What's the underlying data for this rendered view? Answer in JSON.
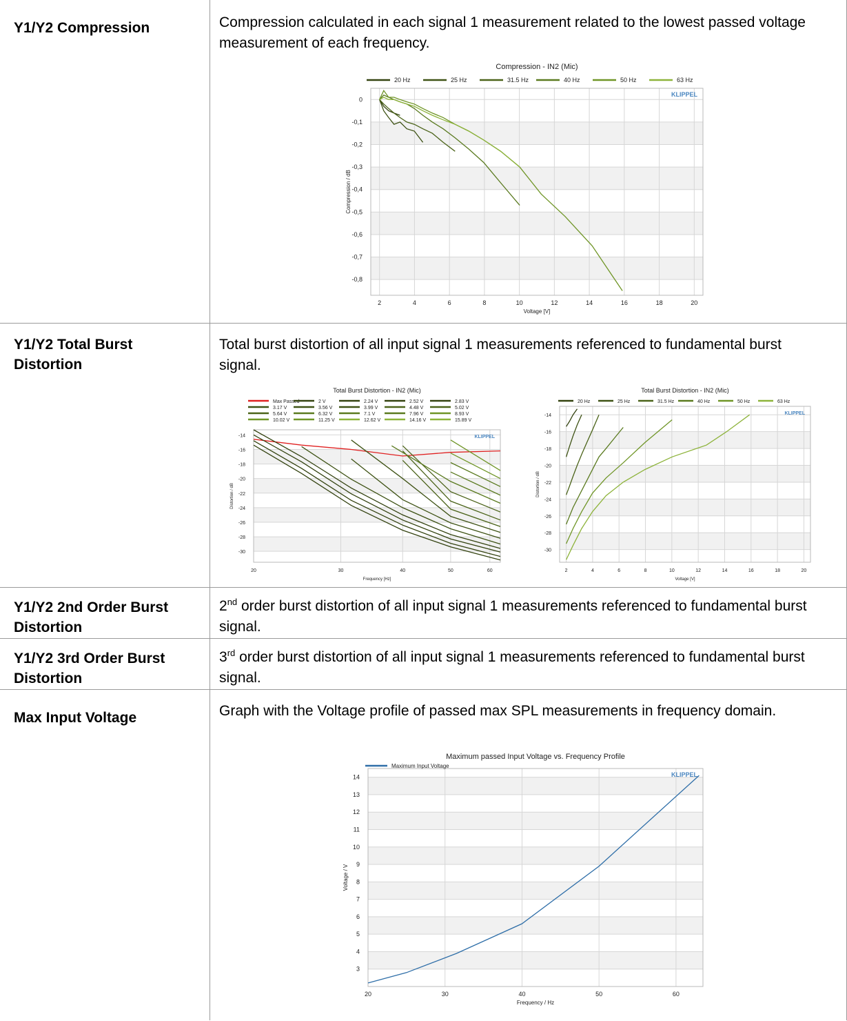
{
  "rows": [
    {
      "name": "Y1/Y2 Compression",
      "desc": "Compression calculated in each signal 1 measurement related to the lowest passed voltage measurement of each frequency."
    },
    {
      "name": "Y1/Y2 Total Burst Distortion",
      "desc": "Total burst distortion of all input signal 1 measurements referenced to fundamental burst signal."
    },
    {
      "name": "Y1/Y2 2nd Order Burst Distortion",
      "desc_sup": "nd",
      "desc_num": "2",
      "desc": " order burst distortion of all input signal 1 measurements referenced to fundamental burst signal."
    },
    {
      "name": "Y1/Y2 3rd Order Burst Distortion",
      "desc_sup": "rd",
      "desc_num": "3",
      "desc": " order burst distortion of all input signal 1 measurements referenced to fundamental burst signal."
    },
    {
      "name": "Max Input Voltage",
      "desc": "Graph with the Voltage profile of passed max SPL measurements in frequency domain."
    }
  ],
  "watermark": "KLIPPEL",
  "colors": {
    "series_green": [
      "#33420f",
      "#3e5214",
      "#4b6319",
      "#5a7a1f",
      "#6f9526",
      "#8db33a"
    ],
    "max_passed": "#e02020",
    "voltage_line": "#2e6ea8",
    "watermark": "#4a86c0"
  },
  "chart_data": [
    {
      "type": "line",
      "title": "Compression - IN2 (Mic)",
      "xlabel": "Voltage [V]",
      "ylabel": "Compression / dB",
      "xlim": [
        1.5,
        20.5
      ],
      "ylim": [
        -0.87,
        0.05
      ],
      "xticks": [
        "2",
        "4",
        "6",
        "8",
        "10",
        "12",
        "14",
        "16",
        "18",
        "20"
      ],
      "yticks": [
        "0",
        "-0,1",
        "-0,2",
        "-0,3",
        "-0,4",
        "-0,5",
        "-0,6",
        "-0,7",
        "-0,8"
      ],
      "ytick_values": [
        0,
        -0.1,
        -0.2,
        -0.3,
        -0.4,
        -0.5,
        -0.6,
        -0.7,
        -0.8
      ],
      "xtick_values": [
        2,
        4,
        6,
        8,
        10,
        12,
        14,
        16,
        18,
        20
      ],
      "legend": "top",
      "series": [
        {
          "name": "20 Hz",
          "x": [
            2,
            2.24,
            2.52,
            2.83,
            3.17
          ],
          "y": [
            0,
            -0.03,
            -0.05,
            -0.06,
            -0.07
          ]
        },
        {
          "name": "25 Hz",
          "x": [
            2,
            2.24,
            2.52,
            2.83,
            3.17,
            3.56,
            3.99,
            4.48
          ],
          "y": [
            0,
            -0.05,
            -0.08,
            -0.11,
            -0.1,
            -0.13,
            -0.14,
            -0.19
          ]
        },
        {
          "name": "31.5 Hz",
          "x": [
            2,
            2.24,
            2.52,
            2.83,
            3.17,
            3.56,
            3.99,
            4.48,
            5.02,
            5.64,
            6.32
          ],
          "y": [
            0,
            -0.02,
            -0.04,
            -0.06,
            -0.08,
            -0.1,
            -0.11,
            -0.13,
            -0.15,
            -0.19,
            -0.23
          ]
        },
        {
          "name": "40 Hz",
          "x": [
            2,
            2.24,
            2.52,
            2.83,
            3.17,
            3.56,
            3.99,
            4.48,
            5.02,
            5.64,
            6.32,
            7.1,
            7.96,
            8.93,
            10.02
          ],
          "y": [
            0,
            0.02,
            0.01,
            0,
            -0.01,
            -0.02,
            -0.04,
            -0.07,
            -0.1,
            -0.13,
            -0.17,
            -0.22,
            -0.28,
            -0.37,
            -0.47
          ]
        },
        {
          "name": "50 Hz",
          "x": [
            2,
            2.24,
            2.52,
            2.83,
            3.17,
            3.56,
            3.99,
            4.48,
            5.02,
            5.64,
            6.32,
            7.1,
            7.96,
            8.93,
            10.02,
            11.25,
            12.62,
            14.16,
            15.89
          ],
          "y": [
            0,
            0.04,
            0.01,
            0.01,
            0.0,
            -0.01,
            -0.02,
            -0.04,
            -0.06,
            -0.08,
            -0.11,
            -0.14,
            -0.18,
            -0.23,
            -0.3,
            -0.42,
            -0.52,
            -0.65,
            -0.85
          ]
        },
        {
          "name": "63 Hz",
          "x": [
            2,
            2.24,
            2.52,
            2.83,
            3.17,
            3.56,
            3.99,
            4.48,
            5.02,
            5.64,
            6.32,
            7.1,
            7.96,
            8.93,
            10.02
          ],
          "y": [
            0,
            0.01,
            0.0,
            0.0,
            -0.01,
            -0.02,
            -0.03,
            -0.05,
            -0.07,
            -0.09,
            -0.11,
            -0.14,
            -0.18,
            -0.23,
            -0.3
          ]
        }
      ]
    },
    {
      "type": "line",
      "title": "Total Burst Distortion - IN2 (Mic)",
      "xlabel": "Frequency [Hz]",
      "ylabel": "Distortion / dB",
      "xscale": "log",
      "xlim": [
        20,
        63
      ],
      "ylim": [
        -31.5,
        -13.3
      ],
      "xticks": [
        "20",
        "30",
        "40",
        "50",
        "60"
      ],
      "xtick_values": [
        20,
        30,
        40,
        50,
        60
      ],
      "yticks": [
        "-14",
        "-16",
        "-18",
        "-20",
        "-22",
        "-24",
        "-26",
        "-28",
        "-30"
      ],
      "ytick_values": [
        -14,
        -16,
        -18,
        -20,
        -22,
        -24,
        -26,
        -28,
        -30
      ],
      "legend": "top",
      "series": [
        {
          "name": "Max Passed",
          "x": [
            20,
            25,
            31.5,
            40,
            50,
            63
          ],
          "y": [
            -14.6,
            -15.4,
            -16.0,
            -16.9,
            -16.4,
            -16.2
          ]
        },
        {
          "name": "2 V",
          "x": [
            20,
            25,
            31.5,
            40,
            50,
            63
          ],
          "y": [
            -15.4,
            -19.3,
            -23.7,
            -27.1,
            -29.4,
            -31.2
          ]
        },
        {
          "name": "2.24 V",
          "x": [
            20,
            25,
            31.5,
            40,
            50,
            63
          ],
          "y": [
            -14.8,
            -18.6,
            -23.0,
            -26.4,
            -28.9,
            -30.7
          ]
        },
        {
          "name": "2.52 V",
          "x": [
            20,
            25,
            31.5,
            40,
            50,
            63
          ],
          "y": [
            -14.0,
            -17.7,
            -22.1,
            -25.7,
            -28.3,
            -30.1
          ]
        },
        {
          "name": "2.83 V",
          "x": [
            20,
            25,
            31.5,
            40,
            50,
            63
          ],
          "y": [
            -13.3,
            -17.0,
            -21.3,
            -25.0,
            -27.7,
            -29.6
          ]
        },
        {
          "name": "3.17 V",
          "x": [
            25,
            31.5,
            40,
            50,
            63
          ],
          "y": [
            -15.6,
            -20.1,
            -24.0,
            -26.9,
            -29.0
          ]
        },
        {
          "name": "3.56 V",
          "x": [
            31.5,
            40,
            50,
            63
          ],
          "y": [
            -17.3,
            -22.9,
            -26.1,
            -28.2
          ]
        },
        {
          "name": "3.99 V",
          "x": [
            31.5,
            40,
            50,
            63
          ],
          "y": [
            -14.7,
            -20.0,
            -25.2,
            -27.4
          ]
        },
        {
          "name": "4.48 V",
          "x": [
            40,
            50,
            63
          ],
          "y": [
            -17.5,
            -24.2,
            -26.6
          ]
        },
        {
          "name": "5.02 V",
          "x": [
            40,
            50,
            63
          ],
          "y": [
            -16.2,
            -23.1,
            -25.7
          ]
        },
        {
          "name": "5.64 V",
          "x": [
            40,
            50,
            63
          ],
          "y": [
            -15.5,
            -21.8,
            -24.6
          ]
        },
        {
          "name": "6.32 V",
          "x": [
            38,
            50,
            63
          ],
          "y": [
            -15.5,
            -20.4,
            -23.4
          ]
        },
        {
          "name": "7.1 V",
          "x": [
            50,
            63
          ],
          "y": [
            -19.1,
            -22.3
          ]
        },
        {
          "name": "7.96 V",
          "x": [
            50,
            63
          ],
          "y": [
            -17.8,
            -21.1
          ]
        },
        {
          "name": "8.93 V",
          "x": [
            50,
            63
          ],
          "y": [
            -16.5,
            -20.0
          ]
        },
        {
          "name": "10.02 V",
          "x": [
            50,
            63
          ],
          "y": [
            -14.7,
            -18.9
          ]
        },
        {
          "name": "11.25 V",
          "x": [],
          "y": []
        },
        {
          "name": "12.62 V",
          "x": [],
          "y": []
        },
        {
          "name": "14.16 V",
          "x": [],
          "y": []
        },
        {
          "name": "15.89 V",
          "x": [],
          "y": []
        }
      ]
    },
    {
      "type": "line",
      "title": "Total Burst Distortion - IN2 (Mic)",
      "xlabel": "Voltage [V]",
      "ylabel": "Distortion / dB",
      "xlim": [
        1.5,
        20.5
      ],
      "ylim": [
        -31.5,
        -13.0
      ],
      "xticks": [
        "2",
        "4",
        "6",
        "8",
        "10",
        "12",
        "14",
        "16",
        "18",
        "20"
      ],
      "xtick_values": [
        2,
        4,
        6,
        8,
        10,
        12,
        14,
        16,
        18,
        20
      ],
      "yticks": [
        "-14",
        "-16",
        "-18",
        "-20",
        "-22",
        "-24",
        "-26",
        "-28",
        "-30"
      ],
      "ytick_values": [
        -14,
        -16,
        -18,
        -20,
        -22,
        -24,
        -26,
        -28,
        -30
      ],
      "legend": "top",
      "series": [
        {
          "name": "20 Hz",
          "x": [
            2,
            2.24,
            2.52,
            2.83
          ],
          "y": [
            -15.4,
            -14.8,
            -14.0,
            -13.3
          ]
        },
        {
          "name": "25 Hz",
          "x": [
            2,
            2.24,
            2.52,
            2.83,
            3.17
          ],
          "y": [
            -19.0,
            -17.8,
            -16.5,
            -15.2,
            -14.0
          ]
        },
        {
          "name": "31.5 Hz",
          "x": [
            2,
            2.24,
            2.52,
            2.83,
            3.17,
            3.56,
            3.99,
            4.48
          ],
          "y": [
            -23.5,
            -22.5,
            -21.3,
            -20.0,
            -18.7,
            -17.3,
            -15.8,
            -14.0
          ]
        },
        {
          "name": "40 Hz",
          "x": [
            2,
            2.52,
            3.17,
            3.99,
            4.48,
            5.02,
            5.64,
            6.32
          ],
          "y": [
            -27.0,
            -25.0,
            -23.0,
            -20.5,
            -19.0,
            -18.0,
            -16.8,
            -15.5
          ]
        },
        {
          "name": "50 Hz",
          "x": [
            2,
            2.52,
            3.17,
            3.99,
            5.02,
            6.32,
            7.96,
            10.02
          ],
          "y": [
            -29.3,
            -27.5,
            -25.5,
            -23.3,
            -21.5,
            -19.7,
            -17.3,
            -14.6
          ]
        },
        {
          "name": "63 Hz",
          "x": [
            2,
            2.52,
            3.17,
            3.99,
            5.02,
            6.32,
            7.96,
            10.02,
            12.62,
            14.16,
            15.89
          ],
          "y": [
            -31.2,
            -29.5,
            -27.5,
            -25.5,
            -23.6,
            -22.0,
            -20.5,
            -19.0,
            -17.6,
            -16.0,
            -14.0
          ]
        }
      ]
    },
    {
      "type": "line",
      "title": "Maximum passed Input Voltage vs. Frequency Profile",
      "xlabel": "Frequency / Hz",
      "ylabel": "Voltage / V",
      "xlim": [
        20,
        63.5
      ],
      "ylim": [
        2,
        14.5
      ],
      "xticks": [
        "20",
        "30",
        "40",
        "50",
        "60"
      ],
      "xtick_values": [
        20,
        30,
        40,
        50,
        60
      ],
      "yticks": [
        "3",
        "4",
        "5",
        "6",
        "7",
        "8",
        "9",
        "10",
        "11",
        "12",
        "13",
        "14"
      ],
      "ytick_values": [
        3,
        4,
        5,
        6,
        7,
        8,
        9,
        10,
        11,
        12,
        13,
        14
      ],
      "legend": "top",
      "series": [
        {
          "name": "Maximum Input Voltage",
          "x": [
            20,
            25,
            31.5,
            40,
            50,
            63
          ],
          "y": [
            2.2,
            2.8,
            3.9,
            5.6,
            8.9,
            14.1
          ]
        }
      ]
    }
  ]
}
